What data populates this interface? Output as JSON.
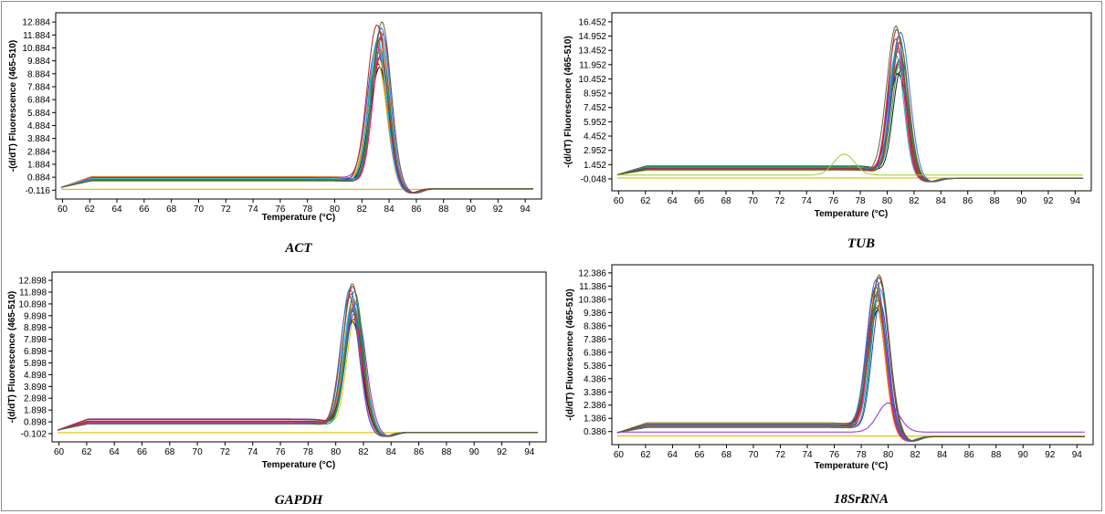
{
  "figure": {
    "border_color": "#8c8c8c",
    "curve_colors": [
      "#000000",
      "#1a1a1a",
      "#e3c000",
      "#1f3fd0",
      "#d01f1f",
      "#00a050",
      "#20b2aa",
      "#8a2be2",
      "#ff7f00",
      "#00bfff",
      "#8b4513",
      "#ff1493",
      "#2e8b57",
      "#4169e1",
      "#b22222",
      "#556b2f",
      "#9acd32",
      "#00ced1",
      "#a0522d",
      "#6a5acd"
    ]
  },
  "chart_data": [
    {
      "type": "line",
      "caption": "ACT",
      "xlabel": "Temperature (°C)",
      "ylabel": "-(d/dT) Fluorescence (465-510)",
      "xlim": [
        59.5,
        95.2
      ],
      "ylim": [
        -0.8,
        13.6
      ],
      "xticks": [
        60,
        62,
        64,
        66,
        68,
        70,
        72,
        74,
        76,
        78,
        80,
        82,
        84,
        86,
        88,
        90,
        92,
        94
      ],
      "yticks": [
        "12.884",
        "11.884",
        "10.884",
        "9.884",
        "8.884",
        "7.884",
        "6.884",
        "5.884",
        "4.884",
        "3.884",
        "2.884",
        "1.884",
        "0.884",
        "-0.116"
      ],
      "curves": {
        "count": 16,
        "peak_temp": 83.3,
        "peak_min": 9.4,
        "peak_max": 12.9,
        "width": 0.95,
        "baseline": 0.75,
        "baseline_start": 0.1
      },
      "flat_line": {
        "y": -0.05,
        "color": "#e3c000"
      }
    },
    {
      "type": "line",
      "caption": "TUB",
      "xlabel": "Temperature (°C)",
      "ylabel": "-(d/dT) Fluorescence (465-510)",
      "xlim": [
        59.5,
        95.2
      ],
      "ylim": [
        -1.3,
        17.4
      ],
      "xticks": [
        60,
        62,
        64,
        66,
        68,
        70,
        72,
        74,
        76,
        78,
        80,
        82,
        84,
        86,
        88,
        90,
        92,
        94
      ],
      "yticks": [
        "16.452",
        "14.952",
        "13.452",
        "11.952",
        "10.452",
        "8.952",
        "7.452",
        "5.952",
        "4.452",
        "2.952",
        "1.452",
        "-0.048"
      ],
      "curves": {
        "count": 16,
        "peak_temp": 80.8,
        "peak_min": 11.0,
        "peak_max": 16.0,
        "width": 0.9,
        "baseline": 1.1,
        "baseline_start": 0.4
      },
      "flat_line": {
        "y": 0.05,
        "color": "#e3c000"
      },
      "small_bump": {
        "center": 76.8,
        "height": 2.2,
        "color": "#9acd32"
      }
    },
    {
      "type": "line",
      "caption": "GAPDH",
      "xlabel": "Temperature (°C)",
      "ylabel": "-(d/dT) Fluorescence (465-510)",
      "xlim": [
        59.5,
        95.2
      ],
      "ylim": [
        -0.8,
        13.6
      ],
      "xticks": [
        60,
        62,
        64,
        66,
        68,
        70,
        72,
        74,
        76,
        78,
        80,
        82,
        84,
        86,
        88,
        90,
        92,
        94
      ],
      "yticks": [
        "12.898",
        "11.898",
        "10.898",
        "9.898",
        "8.898",
        "7.898",
        "6.898",
        "5.898",
        "4.898",
        "3.898",
        "2.898",
        "1.898",
        "0.898",
        "-0.102"
      ],
      "curves": {
        "count": 16,
        "peak_temp": 81.2,
        "peak_min": 9.4,
        "peak_max": 12.6,
        "width": 0.95,
        "baseline": 0.95,
        "baseline_start": 0.2
      },
      "flat_line": {
        "y": -0.02,
        "color": "#e3c000"
      }
    },
    {
      "type": "line",
      "caption": "18SrRNA",
      "xlabel": "Temperature (°C)",
      "ylabel": "-(d/dT) Fluorescence (465-510)",
      "xlim": [
        59.5,
        95.2
      ],
      "ylim": [
        -0.6,
        13.0
      ],
      "xticks": [
        60,
        62,
        64,
        66,
        68,
        70,
        72,
        74,
        76,
        78,
        80,
        82,
        84,
        86,
        88,
        90,
        92,
        94
      ],
      "yticks": [
        "12.386",
        "11.386",
        "10.386",
        "9.386",
        "8.386",
        "7.386",
        "6.386",
        "5.386",
        "4.386",
        "3.386",
        "2.386",
        "1.386",
        "0.386"
      ],
      "curves": {
        "count": 16,
        "peak_temp": 79.2,
        "peak_min": 9.6,
        "peak_max": 12.2,
        "width": 0.95,
        "baseline": 0.85,
        "baseline_start": 0.3
      },
      "flat_line": {
        "y": 0.05,
        "color": "#e3c000"
      },
      "small_bump": {
        "center": 80.0,
        "height": 2.2,
        "color": "#8a2be2"
      }
    }
  ]
}
